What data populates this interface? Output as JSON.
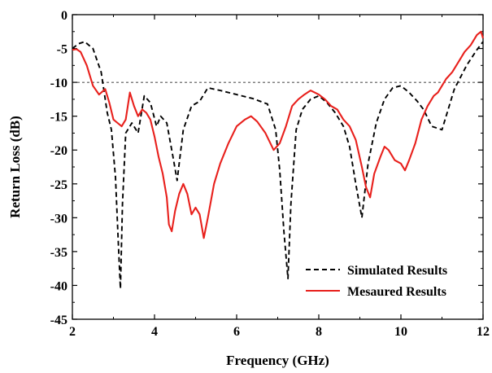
{
  "chart_data": {
    "type": "line",
    "title": "",
    "xlabel": "Frequency (GHz)",
    "ylabel": "Return Loss (dB)",
    "xlim": [
      2,
      12
    ],
    "ylim": [
      -45,
      0
    ],
    "xticks": [
      2,
      4,
      6,
      8,
      10,
      12
    ],
    "yticks": [
      0,
      -5,
      -10,
      -15,
      -20,
      -25,
      -30,
      -35,
      -40,
      -45
    ],
    "xtick_labels": [
      "2",
      "4",
      "6",
      "8",
      "10",
      "12"
    ],
    "ytick_labels": [
      "0",
      "-5",
      "-10",
      "-15",
      "-20",
      "-25",
      "-30",
      "-35",
      "-40",
      "-45"
    ],
    "grid": false,
    "legend_position": "bottom-right",
    "reference_line": {
      "y": -10,
      "style": "dashed"
    },
    "series": [
      {
        "name": "Simulated Results",
        "color": "#000000",
        "style": "dashed",
        "x": [
          2.0,
          2.15,
          2.3,
          2.5,
          2.7,
          2.85,
          2.95,
          3.05,
          3.12,
          3.17,
          3.22,
          3.3,
          3.45,
          3.6,
          3.75,
          3.9,
          4.05,
          4.15,
          4.3,
          4.45,
          4.55,
          4.7,
          4.9,
          5.1,
          5.3,
          5.6,
          6.0,
          6.4,
          6.75,
          6.95,
          7.05,
          7.15,
          7.25,
          7.32,
          7.45,
          7.6,
          7.8,
          8.0,
          8.2,
          8.4,
          8.6,
          8.75,
          8.9,
          9.05,
          9.2,
          9.4,
          9.6,
          9.8,
          10.0,
          10.2,
          10.4,
          10.55,
          10.75,
          11.0,
          11.3,
          11.6,
          11.85,
          12.0
        ],
        "y": [
          -5.0,
          -4.3,
          -4.0,
          -5.0,
          -8.5,
          -14.5,
          -17.0,
          -24.0,
          -34.0,
          -40.5,
          -28.0,
          -17.5,
          -16.0,
          -17.5,
          -12.0,
          -13.0,
          -16.5,
          -15.0,
          -16.0,
          -21.0,
          -24.5,
          -17.0,
          -13.5,
          -12.8,
          -10.8,
          -11.2,
          -11.8,
          -12.4,
          -13.2,
          -17.0,
          -23.0,
          -32.0,
          -39.0,
          -28.0,
          -17.0,
          -14.0,
          -12.5,
          -12.0,
          -13.0,
          -14.5,
          -16.5,
          -19.5,
          -25.0,
          -30.0,
          -22.0,
          -16.0,
          -12.5,
          -10.8,
          -10.5,
          -11.5,
          -12.8,
          -14.0,
          -16.5,
          -17.0,
          -11.0,
          -7.5,
          -5.2,
          -4.0
        ]
      },
      {
        "name": "Mesaured Results",
        "color": "#e8201c",
        "style": "solid",
        "x": [
          2.0,
          2.1,
          2.2,
          2.35,
          2.5,
          2.65,
          2.8,
          2.9,
          3.0,
          3.1,
          3.2,
          3.3,
          3.4,
          3.5,
          3.6,
          3.7,
          3.8,
          3.9,
          4.0,
          4.1,
          4.2,
          4.3,
          4.35,
          4.42,
          4.5,
          4.6,
          4.7,
          4.8,
          4.9,
          5.0,
          5.1,
          5.2,
          5.3,
          5.45,
          5.6,
          5.8,
          6.0,
          6.2,
          6.35,
          6.5,
          6.7,
          6.9,
          7.05,
          7.2,
          7.35,
          7.5,
          7.65,
          7.8,
          8.0,
          8.15,
          8.3,
          8.45,
          8.6,
          8.75,
          8.9,
          9.05,
          9.15,
          9.25,
          9.35,
          9.5,
          9.6,
          9.7,
          9.85,
          10.0,
          10.1,
          10.2,
          10.35,
          10.5,
          10.65,
          10.8,
          10.9,
          11.0,
          11.1,
          11.25,
          11.4,
          11.55,
          11.7,
          11.85,
          11.95,
          12.0
        ],
        "y": [
          -5.2,
          -5.1,
          -5.5,
          -7.5,
          -10.5,
          -11.8,
          -11.0,
          -13.0,
          -15.5,
          -16.0,
          -16.5,
          -15.5,
          -11.5,
          -13.5,
          -15.0,
          -14.0,
          -14.5,
          -15.5,
          -18.0,
          -21.0,
          -23.5,
          -27.0,
          -31.0,
          -32.0,
          -29.0,
          -26.5,
          -25.0,
          -26.5,
          -29.5,
          -28.5,
          -29.5,
          -33.0,
          -30.0,
          -25.0,
          -22.0,
          -19.0,
          -16.5,
          -15.5,
          -15.0,
          -15.8,
          -17.5,
          -20.0,
          -19.0,
          -16.5,
          -13.5,
          -12.5,
          -11.8,
          -11.2,
          -11.8,
          -12.5,
          -13.5,
          -14.0,
          -15.5,
          -16.5,
          -18.5,
          -22.5,
          -25.5,
          -27.0,
          -23.5,
          -21.0,
          -19.5,
          -20.0,
          -21.5,
          -22.0,
          -23.0,
          -21.5,
          -19.0,
          -15.5,
          -13.5,
          -12.0,
          -11.5,
          -10.5,
          -9.5,
          -8.5,
          -7.0,
          -5.5,
          -4.5,
          -3.0,
          -2.5,
          -3.5
        ]
      }
    ]
  }
}
